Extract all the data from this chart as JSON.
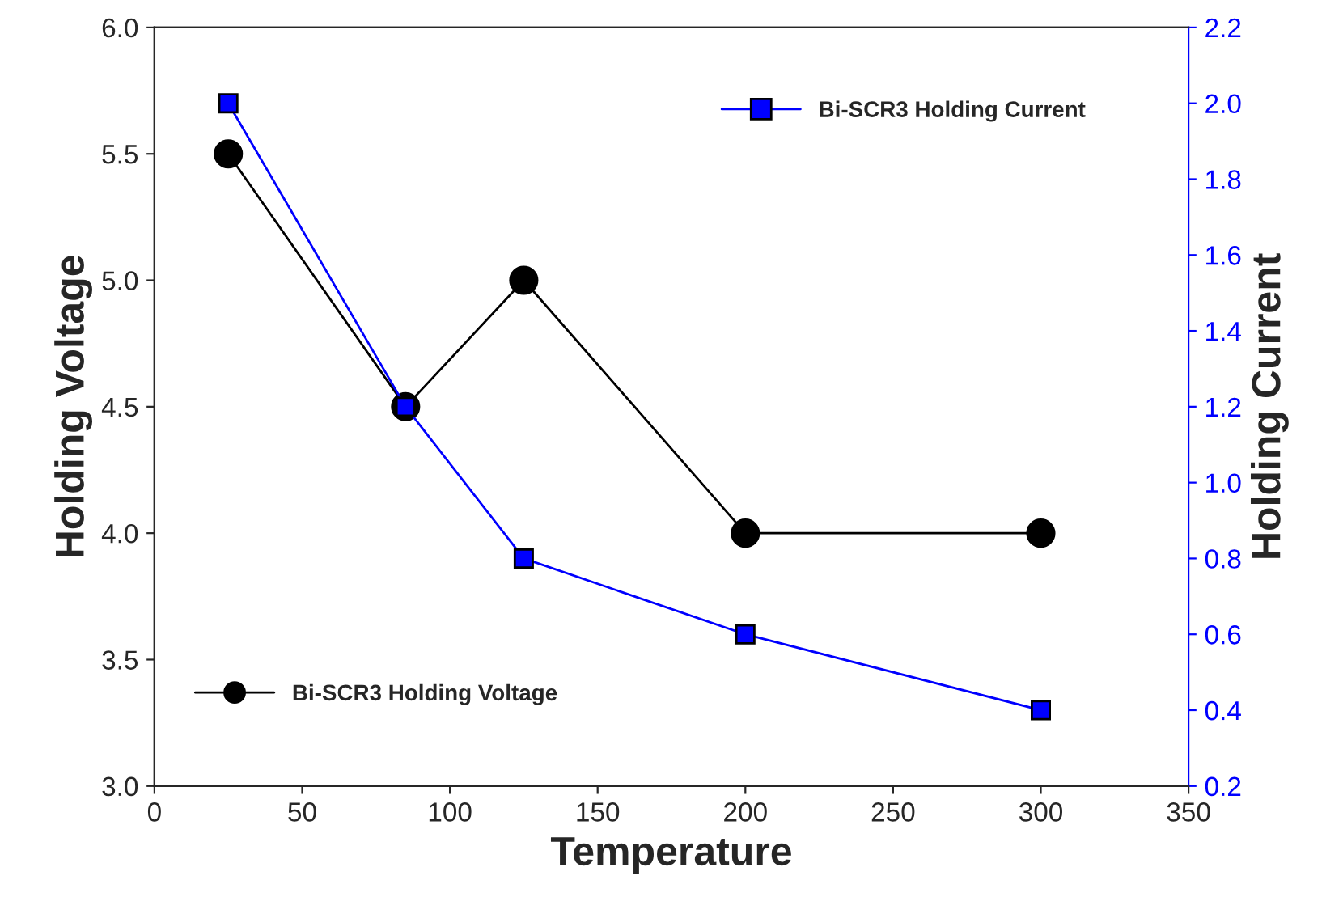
{
  "chart_data": {
    "type": "line",
    "xlabel": "Temperature",
    "ylabel": "Holding Voltage",
    "y2label": "Holding Current",
    "x": [
      25,
      85,
      125,
      200,
      300
    ],
    "series": [
      {
        "name": "Bi-SCR3 Holding Voltage",
        "color": "#000000",
        "marker": "circle",
        "values": [
          5.5,
          4.5,
          5.0,
          4.0,
          4.0
        ]
      },
      {
        "name": "Bi-SCR3 Holding Current",
        "color": "#0000ff",
        "marker": "square",
        "axis": "y2",
        "values": [
          2.0,
          1.2,
          0.8,
          0.6,
          0.4
        ]
      }
    ],
    "xlim": [
      0,
      350
    ],
    "xticks": [
      0,
      50,
      100,
      150,
      200,
      250,
      300,
      350
    ],
    "ylim": [
      3.0,
      6.0
    ],
    "yticks": [
      {
        "value": 3,
        "label": "3.0"
      },
      3.5,
      {
        "value": 4,
        "label": "4.0"
      },
      4.5,
      {
        "value": 5,
        "label": "5.0"
      },
      5.5,
      {
        "value": 6,
        "label": "6.0"
      }
    ],
    "y2lim": [
      0.2,
      2.2
    ],
    "y2ticks": [
      0.2,
      0.4,
      0.6,
      0.8,
      {
        "value": 1,
        "label": "1.0"
      },
      1.2,
      1.4,
      1.6,
      1.8,
      {
        "value": 2,
        "label": "2.0"
      },
      2.2
    ],
    "legend": "top right",
    "grid": false
  }
}
